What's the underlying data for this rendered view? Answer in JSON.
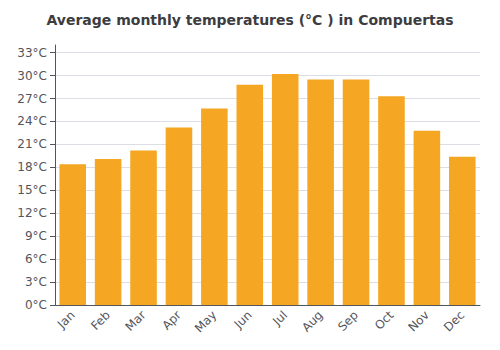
{
  "chart_data": {
    "type": "bar",
    "title": "Average monthly temperatures (°C ) in Compuertas",
    "categories": [
      "Jan",
      "Feb",
      "Mar",
      "Apr",
      "May",
      "Jun",
      "Jul",
      "Aug",
      "Sep",
      "Oct",
      "Nov",
      "Dec"
    ],
    "values": [
      18.4,
      19.1,
      20.2,
      23.2,
      25.7,
      28.8,
      30.2,
      29.5,
      29.5,
      27.3,
      22.8,
      19.4
    ],
    "color": "#F5A623",
    "ylim": [
      0,
      34
    ],
    "yticks": [
      {
        "value": 0,
        "label": "0°C"
      },
      {
        "value": 3,
        "label": "3°C"
      },
      {
        "value": 6,
        "label": "6°C"
      },
      {
        "value": 9,
        "label": "9°C"
      },
      {
        "value": 12,
        "label": "12°C"
      },
      {
        "value": 15,
        "label": "15°C"
      },
      {
        "value": 18,
        "label": "18°C"
      },
      {
        "value": 21,
        "label": "21°C"
      },
      {
        "value": 24,
        "label": "24°C"
      },
      {
        "value": 27,
        "label": "27°C"
      },
      {
        "value": 30,
        "label": "30°C"
      },
      {
        "value": 33,
        "label": "33°C"
      }
    ],
    "grid": true
  }
}
